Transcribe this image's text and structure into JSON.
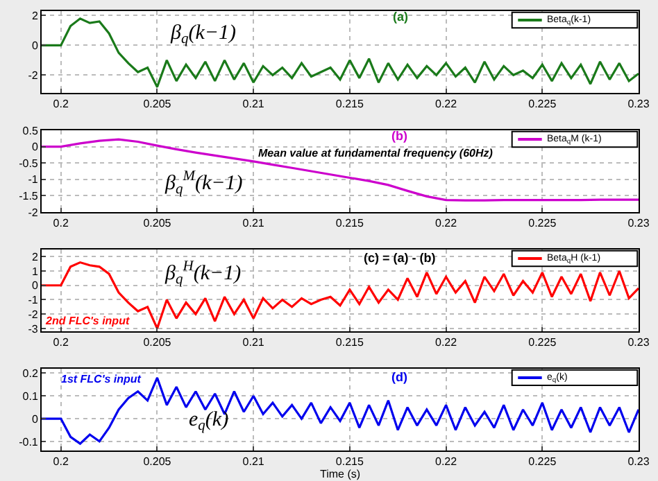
{
  "chart_data": [
    {
      "type": "line",
      "xlim": [
        0.199,
        0.23
      ],
      "xticks": [
        0.2,
        0.205,
        0.21,
        0.215,
        0.22,
        0.225,
        0.23
      ],
      "ylim": [
        -3.2,
        2.3
      ],
      "yticks": [
        -2,
        0,
        2
      ],
      "grid": true,
      "legend": "top right",
      "marker": "none",
      "annotations": [
        "(a)",
        "β$_{q}$(k−1)"
      ],
      "x": [
        0.199,
        0.1995,
        0.2,
        0.2005,
        0.201,
        0.2015,
        0.202,
        0.2025,
        0.203,
        0.2035,
        0.204,
        0.2045,
        0.205,
        0.2055,
        0.206,
        0.2065,
        0.207,
        0.2075,
        0.208,
        0.2085,
        0.209,
        0.2095,
        0.21,
        0.2105,
        0.211,
        0.2115,
        0.212,
        0.2125,
        0.213,
        0.2135,
        0.214,
        0.2145,
        0.215,
        0.2155,
        0.216,
        0.2165,
        0.217,
        0.2175,
        0.218,
        0.2185,
        0.219,
        0.2195,
        0.22,
        0.2205,
        0.221,
        0.2215,
        0.222,
        0.2225,
        0.223,
        0.2235,
        0.224,
        0.2245,
        0.225,
        0.2255,
        0.226,
        0.2265,
        0.227,
        0.2275,
        0.228,
        0.2285,
        0.229,
        0.2295,
        0.23
      ],
      "series": [
        {
          "name": "Beta$_{q}$(k-1)",
          "color": "#1a7a1a",
          "values": [
            0,
            0,
            0,
            1.3,
            1.8,
            1.5,
            1.6,
            0.8,
            -0.5,
            -1.2,
            -1.8,
            -1.5,
            -2.8,
            -1.0,
            -2.4,
            -1.3,
            -2.2,
            -1.1,
            -2.4,
            -1.0,
            -2.3,
            -1.2,
            -2.5,
            -1.4,
            -2.0,
            -1.5,
            -2.2,
            -1.2,
            -2.1,
            -1.8,
            -1.5,
            -2.3,
            -1.0,
            -2.2,
            -0.9,
            -2.5,
            -1.2,
            -2.3,
            -1.3,
            -2.2,
            -1.4,
            -2.0,
            -1.2,
            -2.1,
            -1.5,
            -2.5,
            -1.1,
            -2.3,
            -1.4,
            -2.0,
            -1.7,
            -2.2,
            -1.3,
            -2.4,
            -1.2,
            -2.2,
            -1.3,
            -2.6,
            -1.1,
            -2.3,
            -1.2,
            -2.4,
            -1.9
          ]
        }
      ]
    },
    {
      "type": "line",
      "xlim": [
        0.199,
        0.23
      ],
      "xticks": [
        0.2,
        0.205,
        0.21,
        0.215,
        0.22,
        0.225,
        0.23
      ],
      "ylim": [
        -2,
        0.5
      ],
      "yticks": [
        -2,
        -1.5,
        -1,
        -0.5,
        0,
        0.5
      ],
      "grid": true,
      "legend": "top right",
      "marker": "none",
      "annotations": [
        "(b)",
        "Mean value at fundamental frequency (60Hz)",
        "β$_{q}$$^{M}$(k−1)"
      ],
      "x": [
        0.199,
        0.2,
        0.201,
        0.202,
        0.203,
        0.204,
        0.205,
        0.206,
        0.207,
        0.208,
        0.209,
        0.21,
        0.211,
        0.212,
        0.213,
        0.214,
        0.215,
        0.216,
        0.217,
        0.218,
        0.219,
        0.22,
        0.221,
        0.222,
        0.223,
        0.224,
        0.225,
        0.226,
        0.227,
        0.228,
        0.229,
        0.23
      ],
      "series": [
        {
          "name": "Beta$_{q}$M (k-1)",
          "color": "#cc00cc",
          "values": [
            0,
            0,
            0.1,
            0.18,
            0.22,
            0.15,
            0.03,
            -0.08,
            -0.18,
            -0.27,
            -0.36,
            -0.45,
            -0.55,
            -0.65,
            -0.75,
            -0.85,
            -0.95,
            -1.05,
            -1.17,
            -1.35,
            -1.52,
            -1.63,
            -1.64,
            -1.64,
            -1.63,
            -1.63,
            -1.63,
            -1.63,
            -1.63,
            -1.62,
            -1.62,
            -1.62
          ]
        }
      ]
    },
    {
      "type": "line",
      "xlim": [
        0.199,
        0.23
      ],
      "xticks": [
        0.2,
        0.205,
        0.21,
        0.215,
        0.22,
        0.225,
        0.23
      ],
      "ylim": [
        -3.2,
        2.5
      ],
      "yticks": [
        -3,
        -2,
        -1,
        0,
        1,
        2
      ],
      "grid": true,
      "legend": "top right",
      "marker": "none",
      "annotations": [
        "(c) = (a) - (b)",
        "β$_{q}$$^{H}$(k−1)",
        "2nd FLC's input"
      ],
      "x": [
        0.199,
        0.1995,
        0.2,
        0.2005,
        0.201,
        0.2015,
        0.202,
        0.2025,
        0.203,
        0.2035,
        0.204,
        0.2045,
        0.205,
        0.2055,
        0.206,
        0.2065,
        0.207,
        0.2075,
        0.208,
        0.2085,
        0.209,
        0.2095,
        0.21,
        0.2105,
        0.211,
        0.2115,
        0.212,
        0.2125,
        0.213,
        0.2135,
        0.214,
        0.2145,
        0.215,
        0.2155,
        0.216,
        0.2165,
        0.217,
        0.2175,
        0.218,
        0.2185,
        0.219,
        0.2195,
        0.22,
        0.2205,
        0.221,
        0.2215,
        0.222,
        0.2225,
        0.223,
        0.2235,
        0.224,
        0.2245,
        0.225,
        0.2255,
        0.226,
        0.2265,
        0.227,
        0.2275,
        0.228,
        0.2285,
        0.229,
        0.2295,
        0.23
      ],
      "series": [
        {
          "name": "Beta$_{q}$H (k-1)",
          "color": "#ff0000",
          "values": [
            0,
            0,
            0,
            1.3,
            1.6,
            1.4,
            1.3,
            0.8,
            -0.5,
            -1.2,
            -1.8,
            -1.5,
            -3.0,
            -1.0,
            -2.3,
            -1.2,
            -2.0,
            -0.9,
            -2.5,
            -0.8,
            -2.0,
            -1.0,
            -2.3,
            -0.9,
            -1.6,
            -1.0,
            -1.5,
            -0.9,
            -1.3,
            -1.0,
            -0.8,
            -1.4,
            -0.3,
            -1.3,
            -0.1,
            -1.2,
            -0.3,
            -1.0,
            0.5,
            -0.8,
            0.9,
            -0.6,
            0.6,
            -0.5,
            0.3,
            -1.2,
            0.6,
            -0.4,
            0.8,
            -0.7,
            0.3,
            -0.5,
            0.9,
            -0.8,
            0.6,
            -0.6,
            0.8,
            -1.1,
            0.9,
            -0.7,
            1.0,
            -0.9,
            -0.2
          ]
        }
      ]
    },
    {
      "type": "line",
      "xlim": [
        0.199,
        0.23
      ],
      "xticks": [
        0.2,
        0.205,
        0.21,
        0.215,
        0.22,
        0.225,
        0.23
      ],
      "ylim": [
        -0.14,
        0.22
      ],
      "yticks": [
        -0.1,
        0,
        0.1,
        0.2
      ],
      "grid": true,
      "legend": "top right",
      "marker": "none",
      "xlabel": "Time (s)",
      "annotations": [
        "(d)",
        "1st FLC's input",
        "e$_{q}$(k)"
      ],
      "x": [
        0.199,
        0.1995,
        0.2,
        0.2005,
        0.201,
        0.2015,
        0.202,
        0.2025,
        0.203,
        0.2035,
        0.204,
        0.2045,
        0.205,
        0.2055,
        0.206,
        0.2065,
        0.207,
        0.2075,
        0.208,
        0.2085,
        0.209,
        0.2095,
        0.21,
        0.2105,
        0.211,
        0.2115,
        0.212,
        0.2125,
        0.213,
        0.2135,
        0.214,
        0.2145,
        0.215,
        0.2155,
        0.216,
        0.2165,
        0.217,
        0.2175,
        0.218,
        0.2185,
        0.219,
        0.2195,
        0.22,
        0.2205,
        0.221,
        0.2215,
        0.222,
        0.2225,
        0.223,
        0.2235,
        0.224,
        0.2245,
        0.225,
        0.2255,
        0.226,
        0.2265,
        0.227,
        0.2275,
        0.228,
        0.2285,
        0.229,
        0.2295,
        0.23
      ],
      "series": [
        {
          "name": "e$_{q}$(k)",
          "color": "#0000ee",
          "values": [
            0,
            0,
            0,
            -0.08,
            -0.11,
            -0.07,
            -0.1,
            -0.04,
            0.04,
            0.09,
            0.12,
            0.08,
            0.18,
            0.06,
            0.14,
            0.05,
            0.12,
            0.04,
            0.11,
            0.02,
            0.12,
            0.03,
            0.1,
            0.02,
            0.07,
            0.01,
            0.06,
            0.0,
            0.07,
            -0.02,
            0.05,
            -0.01,
            0.07,
            -0.04,
            0.06,
            -0.03,
            0.08,
            -0.05,
            0.05,
            -0.03,
            0.04,
            -0.03,
            0.06,
            -0.05,
            0.05,
            -0.03,
            0.03,
            -0.04,
            0.06,
            -0.05,
            0.04,
            -0.03,
            0.07,
            -0.05,
            0.04,
            -0.04,
            0.05,
            -0.06,
            0.05,
            -0.03,
            0.05,
            -0.06,
            0.04
          ]
        }
      ]
    }
  ]
}
